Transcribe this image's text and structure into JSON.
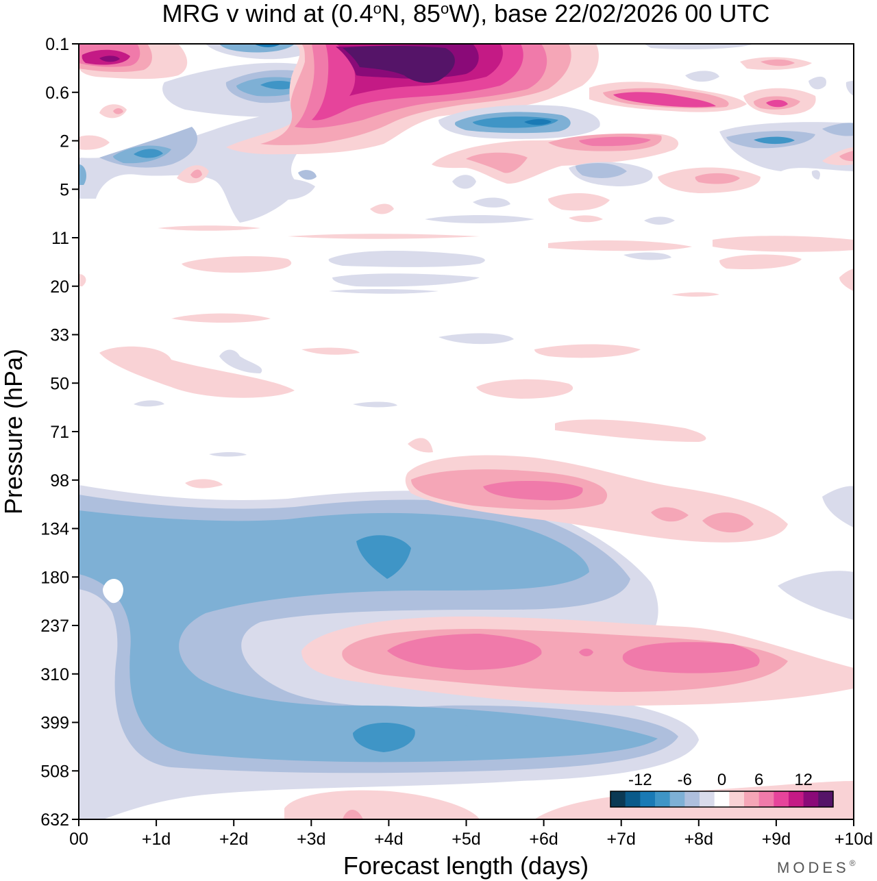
{
  "chart_data": {
    "type": "contour",
    "title": "MRG v wind at (0.4°N, 85°W),  base 22/02/2026  00 UTC",
    "title_parts": {
      "prefix": "MRG v wind at (0.4",
      "lat": "N, 85",
      "lon": "W),  base 22/02/2026  00 UTC",
      "degree": "o"
    },
    "xlabel": "Forecast length (days)",
    "ylabel": "Pressure (hPa)",
    "x_ticks": [
      "00",
      "+1d",
      "+2d",
      "+3d",
      "+4d",
      "+5d",
      "+6d",
      "+7d",
      "+8d",
      "+9d",
      "+10d"
    ],
    "xlim_days": [
      0,
      10
    ],
    "y_ticks": [
      "0.1",
      "0.6",
      "2",
      "5",
      "11",
      "20",
      "33",
      "50",
      "71",
      "98",
      "134",
      "180",
      "237",
      "310",
      "399",
      "508",
      "632"
    ],
    "ylim_hpa": [
      0.1,
      632
    ],
    "y_scale": "pseudo-log (equally spaced model levels)",
    "colorbar": {
      "location": "bottom-right",
      "labels": [
        "-12",
        "-6",
        "0",
        "6",
        "12"
      ],
      "levels": [
        -14,
        -12,
        -10,
        -8,
        -6,
        -4,
        -2,
        2,
        4,
        6,
        8,
        10,
        12,
        14
      ],
      "colors": [
        "#0b3954",
        "#0a5a8a",
        "#1a7ab5",
        "#3f95c6",
        "#7eb0d5",
        "#aebfdd",
        "#d9dbeb",
        "#ffffff",
        "#f9d2d5",
        "#f5a6b7",
        "#f07aaa",
        "#e6449b",
        "#c41a85",
        "#8a0a78",
        "#551468"
      ]
    },
    "features": [
      {
        "name": "upper-tropo-negative",
        "x_days": [
          0,
          8.5
        ],
        "pressure_hpa": [
          110,
          550
        ],
        "min_value": -10,
        "peak_at": [
          [
            4,
            160
          ],
          [
            4,
            420
          ]
        ]
      },
      {
        "name": "upper-tropo-positive",
        "x_days": [
          3,
          10
        ],
        "pressure_hpa": [
          230,
          340
        ],
        "max_value": 10,
        "peak_at": [
          [
            4.7,
            280
          ],
          [
            8.3,
            280
          ]
        ]
      },
      {
        "name": "lower-strat-positive",
        "x_days": [
          4.3,
          9.2
        ],
        "pressure_hpa": [
          85,
          160
        ],
        "max_value": 8,
        "peak_at": [
          [
            5.5,
            110
          ]
        ]
      },
      {
        "name": "upper-strat-positive-jet",
        "x_days": [
          3,
          5.5
        ],
        "pressure_hpa": [
          0.1,
          1.5
        ],
        "max_value": 16,
        "peak_at": [
          [
            4.3,
            0.3
          ]
        ]
      },
      {
        "name": "near-surface-positive",
        "x_days": [
          2.7,
          10
        ],
        "pressure_hpa": [
          580,
          632
        ],
        "max_value": 4
      }
    ]
  },
  "brand": "MODES",
  "brand_mark": "®"
}
